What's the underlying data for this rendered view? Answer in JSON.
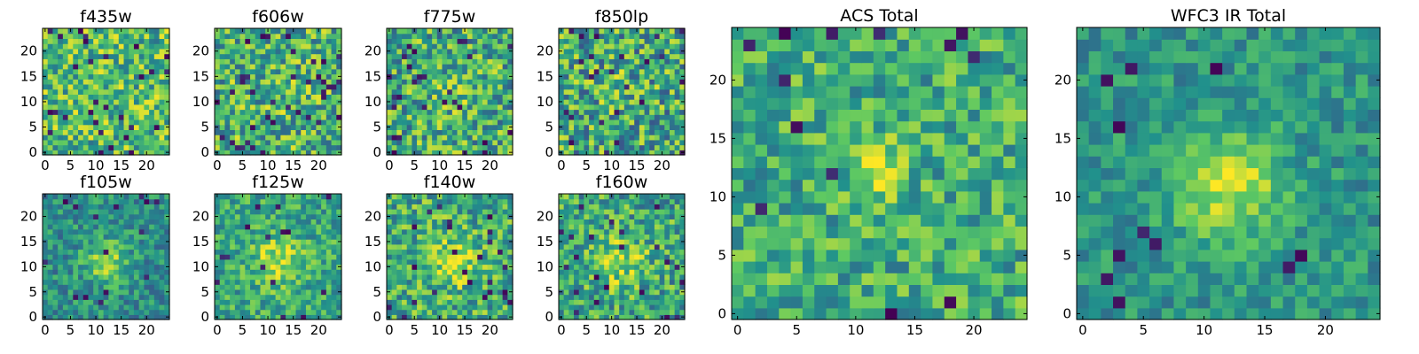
{
  "figure": {
    "colormap": "viridis",
    "colormap_stops": [
      "#440154",
      "#3b528b",
      "#21918c",
      "#5ec962",
      "#fde725"
    ]
  },
  "chart_data": [
    {
      "type": "heatmap",
      "title": "f435w",
      "xlim": [
        0,
        25
      ],
      "ylim": [
        0,
        25
      ],
      "xticks": [
        "0",
        "5",
        "10",
        "15",
        "20"
      ],
      "yticks": [
        "0",
        "5",
        "10",
        "15",
        "20"
      ],
      "grid_size": 25,
      "seed": 11,
      "base_level": 0.68,
      "noise": 0.3,
      "blob_amp": 0.0,
      "blob_center": [
        12,
        12
      ],
      "blob_sigma": 3.0,
      "dark_fraction": 0.04
    },
    {
      "type": "heatmap",
      "title": "f606w",
      "xlim": [
        0,
        25
      ],
      "ylim": [
        0,
        25
      ],
      "xticks": [
        "0",
        "5",
        "10",
        "15",
        "20"
      ],
      "yticks": [
        "0",
        "5",
        "10",
        "15",
        "20"
      ],
      "grid_size": 25,
      "seed": 23,
      "base_level": 0.64,
      "noise": 0.32,
      "blob_amp": 0.05,
      "blob_center": [
        12,
        12
      ],
      "blob_sigma": 3.0,
      "dark_fraction": 0.05
    },
    {
      "type": "heatmap",
      "title": "f775w",
      "xlim": [
        0,
        25
      ],
      "ylim": [
        0,
        25
      ],
      "xticks": [
        "0",
        "5",
        "10",
        "15",
        "20"
      ],
      "yticks": [
        "0",
        "5",
        "10",
        "15",
        "20"
      ],
      "grid_size": 25,
      "seed": 37,
      "base_level": 0.62,
      "noise": 0.32,
      "blob_amp": 0.1,
      "blob_center": [
        12,
        12
      ],
      "blob_sigma": 3.0,
      "dark_fraction": 0.05
    },
    {
      "type": "heatmap",
      "title": "f850lp",
      "xlim": [
        0,
        25
      ],
      "ylim": [
        0,
        25
      ],
      "xticks": [
        "0",
        "5",
        "10",
        "15",
        "20"
      ],
      "yticks": [
        "0",
        "5",
        "10",
        "15",
        "20"
      ],
      "grid_size": 25,
      "seed": 41,
      "base_level": 0.6,
      "noise": 0.34,
      "blob_amp": 0.08,
      "blob_center": [
        12,
        12
      ],
      "blob_sigma": 3.0,
      "dark_fraction": 0.06
    },
    {
      "type": "heatmap",
      "title": "f105w",
      "xlim": [
        0,
        25
      ],
      "ylim": [
        0,
        25
      ],
      "xticks": [
        "0",
        "5",
        "10",
        "15",
        "20"
      ],
      "yticks": [
        "0",
        "5",
        "10",
        "15",
        "20"
      ],
      "grid_size": 25,
      "seed": 53,
      "base_level": 0.5,
      "noise": 0.2,
      "blob_amp": 0.35,
      "blob_center": [
        12,
        11
      ],
      "blob_sigma": 3.0,
      "dark_fraction": 0.03
    },
    {
      "type": "heatmap",
      "title": "f125w",
      "xlim": [
        0,
        25
      ],
      "ylim": [
        0,
        25
      ],
      "xticks": [
        "0",
        "5",
        "10",
        "15",
        "20"
      ],
      "yticks": [
        "0",
        "5",
        "10",
        "15",
        "20"
      ],
      "grid_size": 25,
      "seed": 67,
      "base_level": 0.6,
      "noise": 0.22,
      "blob_amp": 0.3,
      "blob_center": [
        12,
        11
      ],
      "blob_sigma": 3.5,
      "dark_fraction": 0.02
    },
    {
      "type": "heatmap",
      "title": "f140w",
      "xlim": [
        0,
        25
      ],
      "ylim": [
        0,
        25
      ],
      "xticks": [
        "0",
        "5",
        "10",
        "15",
        "20"
      ],
      "yticks": [
        "0",
        "5",
        "10",
        "15",
        "20"
      ],
      "grid_size": 25,
      "seed": 79,
      "base_level": 0.62,
      "noise": 0.28,
      "blob_amp": 0.25,
      "blob_center": [
        12,
        11
      ],
      "blob_sigma": 3.5,
      "dark_fraction": 0.04
    },
    {
      "type": "heatmap",
      "title": "f160w",
      "xlim": [
        0,
        25
      ],
      "ylim": [
        0,
        25
      ],
      "xticks": [
        "0",
        "5",
        "10",
        "15",
        "20"
      ],
      "yticks": [
        "0",
        "5",
        "10",
        "15",
        "20"
      ],
      "grid_size": 25,
      "seed": 83,
      "base_level": 0.6,
      "noise": 0.28,
      "blob_amp": 0.25,
      "blob_center": [
        12,
        11
      ],
      "blob_sigma": 3.5,
      "dark_fraction": 0.04
    },
    {
      "type": "heatmap",
      "title": "ACS Total",
      "xlim": [
        0,
        25
      ],
      "ylim": [
        0,
        25
      ],
      "xticks": [
        "0",
        "5",
        "10",
        "15",
        "20"
      ],
      "yticks": [
        "0",
        "5",
        "10",
        "15",
        "20"
      ],
      "grid_size": 25,
      "seed": 97,
      "base_level": 0.62,
      "noise": 0.24,
      "blob_amp": 0.25,
      "blob_center": [
        12,
        12
      ],
      "blob_sigma": 1.8,
      "dark_fraction": 0.02
    },
    {
      "type": "heatmap",
      "title": "WFC3 IR Total",
      "xlim": [
        0,
        25
      ],
      "ylim": [
        0,
        25
      ],
      "xticks": [
        "0",
        "5",
        "10",
        "15",
        "20"
      ],
      "yticks": [
        "0",
        "5",
        "10",
        "15",
        "20"
      ],
      "grid_size": 25,
      "seed": 109,
      "base_level": 0.52,
      "noise": 0.16,
      "blob_amp": 0.4,
      "blob_center": [
        12,
        11
      ],
      "blob_sigma": 3.2,
      "dark_fraction": 0.02
    }
  ]
}
